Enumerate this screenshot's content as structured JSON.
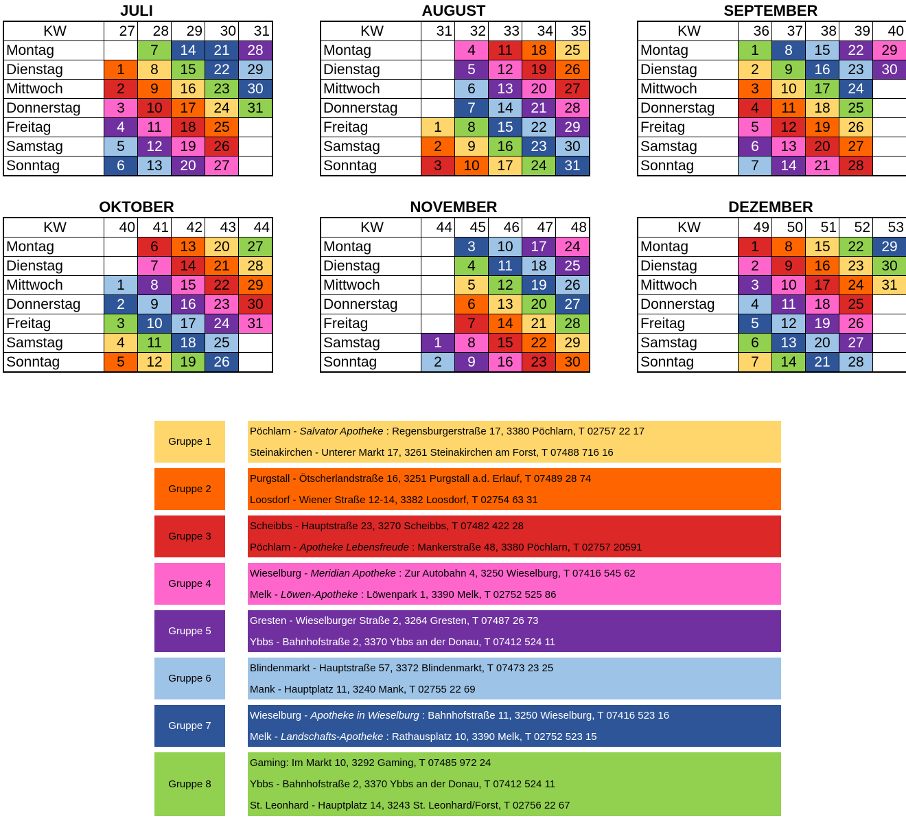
{
  "day_names": [
    "Montag",
    "Dienstag",
    "Mittwoch",
    "Donnerstag",
    "Freitag",
    "Samstag",
    "Sonntag"
  ],
  "kw_label": "KW",
  "months": [
    {
      "name": "JULI",
      "kw": [
        "27",
        "28",
        "29",
        "30",
        "31"
      ],
      "days": [
        [
          [
            "",
            0
          ],
          [
            "7",
            8
          ],
          [
            "14",
            7
          ],
          [
            "21",
            7
          ],
          [
            "28",
            5
          ]
        ],
        [
          [
            "1",
            2
          ],
          [
            "8",
            1
          ],
          [
            "15",
            8
          ],
          [
            "22",
            7
          ],
          [
            "29",
            6
          ]
        ],
        [
          [
            "2",
            3
          ],
          [
            "9",
            2
          ],
          [
            "16",
            1
          ],
          [
            "23",
            8
          ],
          [
            "30",
            7
          ]
        ],
        [
          [
            "3",
            4
          ],
          [
            "10",
            3
          ],
          [
            "17",
            2
          ],
          [
            "24",
            1
          ],
          [
            "31",
            8
          ]
        ],
        [
          [
            "4",
            5
          ],
          [
            "11",
            4
          ],
          [
            "18",
            3
          ],
          [
            "25",
            2
          ],
          [
            "",
            0
          ]
        ],
        [
          [
            "5",
            6
          ],
          [
            "12",
            5
          ],
          [
            "19",
            4
          ],
          [
            "26",
            3
          ],
          [
            "",
            0
          ]
        ],
        [
          [
            "6",
            7
          ],
          [
            "13",
            6
          ],
          [
            "20",
            5
          ],
          [
            "27",
            4
          ],
          [
            "",
            0
          ]
        ]
      ]
    },
    {
      "name": "AUGUST",
      "kw": [
        "31",
        "32",
        "33",
        "34",
        "35"
      ],
      "days": [
        [
          [
            "",
            0
          ],
          [
            "4",
            4
          ],
          [
            "11",
            3
          ],
          [
            "18",
            2
          ],
          [
            "25",
            1
          ]
        ],
        [
          [
            "",
            0
          ],
          [
            "5",
            5
          ],
          [
            "12",
            4
          ],
          [
            "19",
            3
          ],
          [
            "26",
            2
          ]
        ],
        [
          [
            "",
            0
          ],
          [
            "6",
            6
          ],
          [
            "13",
            5
          ],
          [
            "20",
            4
          ],
          [
            "27",
            3
          ]
        ],
        [
          [
            "",
            0
          ],
          [
            "7",
            7
          ],
          [
            "14",
            6
          ],
          [
            "21",
            5
          ],
          [
            "28",
            4
          ]
        ],
        [
          [
            "1",
            1
          ],
          [
            "8",
            8
          ],
          [
            "15",
            7
          ],
          [
            "22",
            6
          ],
          [
            "29",
            5
          ]
        ],
        [
          [
            "2",
            2
          ],
          [
            "9",
            1
          ],
          [
            "16",
            8
          ],
          [
            "23",
            7
          ],
          [
            "30",
            6
          ]
        ],
        [
          [
            "3",
            3
          ],
          [
            "10",
            2
          ],
          [
            "17",
            1
          ],
          [
            "24",
            8
          ],
          [
            "31",
            7
          ]
        ]
      ]
    },
    {
      "name": "SEPTEMBER",
      "kw": [
        "36",
        "37",
        "38",
        "39",
        "40"
      ],
      "days": [
        [
          [
            "1",
            8
          ],
          [
            "8",
            7
          ],
          [
            "15",
            6
          ],
          [
            "22",
            5
          ],
          [
            "29",
            4
          ]
        ],
        [
          [
            "2",
            1
          ],
          [
            "9",
            8
          ],
          [
            "16",
            7
          ],
          [
            "23",
            6
          ],
          [
            "30",
            5
          ]
        ],
        [
          [
            "3",
            2
          ],
          [
            "10",
            1
          ],
          [
            "17",
            8
          ],
          [
            "24",
            7
          ],
          [
            "",
            0
          ]
        ],
        [
          [
            "4",
            3
          ],
          [
            "11",
            2
          ],
          [
            "18",
            1
          ],
          [
            "25",
            8
          ],
          [
            "",
            0
          ]
        ],
        [
          [
            "5",
            4
          ],
          [
            "12",
            3
          ],
          [
            "19",
            2
          ],
          [
            "26",
            1
          ],
          [
            "",
            0
          ]
        ],
        [
          [
            "6",
            5
          ],
          [
            "13",
            4
          ],
          [
            "20",
            3
          ],
          [
            "27",
            2
          ],
          [
            "",
            0
          ]
        ],
        [
          [
            "7",
            6
          ],
          [
            "14",
            5
          ],
          [
            "21",
            4
          ],
          [
            "28",
            3
          ],
          [
            "",
            0
          ]
        ]
      ]
    },
    {
      "name": "OKTOBER",
      "kw": [
        "40",
        "41",
        "42",
        "43",
        "44"
      ],
      "days": [
        [
          [
            "",
            0
          ],
          [
            "6",
            3
          ],
          [
            "13",
            2
          ],
          [
            "20",
            1
          ],
          [
            "27",
            8
          ]
        ],
        [
          [
            "",
            0
          ],
          [
            "7",
            4
          ],
          [
            "14",
            3
          ],
          [
            "21",
            2
          ],
          [
            "28",
            1
          ]
        ],
        [
          [
            "1",
            6
          ],
          [
            "8",
            5
          ],
          [
            "15",
            4
          ],
          [
            "22",
            3
          ],
          [
            "29",
            2
          ]
        ],
        [
          [
            "2",
            7
          ],
          [
            "9",
            6
          ],
          [
            "16",
            5
          ],
          [
            "23",
            4
          ],
          [
            "30",
            3
          ]
        ],
        [
          [
            "3",
            8
          ],
          [
            "10",
            7
          ],
          [
            "17",
            6
          ],
          [
            "24",
            5
          ],
          [
            "31",
            4
          ]
        ],
        [
          [
            "4",
            1
          ],
          [
            "11",
            8
          ],
          [
            "18",
            7
          ],
          [
            "25",
            6
          ],
          [
            "",
            0
          ]
        ],
        [
          [
            "5",
            2
          ],
          [
            "12",
            1
          ],
          [
            "19",
            8
          ],
          [
            "26",
            7
          ],
          [
            "",
            0
          ]
        ]
      ]
    },
    {
      "name": "NOVEMBER",
      "kw": [
        "44",
        "45",
        "46",
        "47",
        "48"
      ],
      "days": [
        [
          [
            "",
            0
          ],
          [
            "3",
            7
          ],
          [
            "10",
            6
          ],
          [
            "17",
            5
          ],
          [
            "24",
            4
          ]
        ],
        [
          [
            "",
            0
          ],
          [
            "4",
            8
          ],
          [
            "11",
            7
          ],
          [
            "18",
            6
          ],
          [
            "25",
            5
          ]
        ],
        [
          [
            "",
            0
          ],
          [
            "5",
            1
          ],
          [
            "12",
            8
          ],
          [
            "19",
            7
          ],
          [
            "26",
            6
          ]
        ],
        [
          [
            "",
            0
          ],
          [
            "6",
            2
          ],
          [
            "13",
            1
          ],
          [
            "20",
            8
          ],
          [
            "27",
            7
          ]
        ],
        [
          [
            "",
            0
          ],
          [
            "7",
            3
          ],
          [
            "14",
            2
          ],
          [
            "21",
            1
          ],
          [
            "28",
            8
          ]
        ],
        [
          [
            "1",
            5
          ],
          [
            "8",
            4
          ],
          [
            "15",
            3
          ],
          [
            "22",
            2
          ],
          [
            "29",
            1
          ]
        ],
        [
          [
            "2",
            6
          ],
          [
            "9",
            5
          ],
          [
            "16",
            4
          ],
          [
            "23",
            3
          ],
          [
            "30",
            2
          ]
        ]
      ]
    },
    {
      "name": "DEZEMBER",
      "kw": [
        "49",
        "50",
        "51",
        "52",
        "53"
      ],
      "days": [
        [
          [
            "1",
            3
          ],
          [
            "8",
            2
          ],
          [
            "15",
            1
          ],
          [
            "22",
            8
          ],
          [
            "29",
            7
          ]
        ],
        [
          [
            "2",
            4
          ],
          [
            "9",
            3
          ],
          [
            "16",
            2
          ],
          [
            "23",
            1
          ],
          [
            "30",
            8
          ]
        ],
        [
          [
            "3",
            5
          ],
          [
            "10",
            4
          ],
          [
            "17",
            3
          ],
          [
            "24",
            2
          ],
          [
            "31",
            1
          ]
        ],
        [
          [
            "4",
            6
          ],
          [
            "11",
            5
          ],
          [
            "18",
            4
          ],
          [
            "25",
            3
          ],
          [
            "",
            0
          ]
        ],
        [
          [
            "5",
            7
          ],
          [
            "12",
            6
          ],
          [
            "19",
            5
          ],
          [
            "26",
            4
          ],
          [
            "",
            0
          ]
        ],
        [
          [
            "6",
            8
          ],
          [
            "13",
            7
          ],
          [
            "20",
            6
          ],
          [
            "27",
            5
          ],
          [
            "",
            0
          ]
        ],
        [
          [
            "7",
            1
          ],
          [
            "14",
            8
          ],
          [
            "21",
            7
          ],
          [
            "28",
            6
          ],
          [
            "",
            0
          ]
        ]
      ]
    }
  ],
  "groups": [
    {
      "label": "Gruppe 1",
      "color": "#fed66b",
      "entries": [
        {
          "place": "Pöchlarn",
          "name": "Salvator Apotheke",
          "address": "Regensburgerstraße 17, 3380 Pöchlarn, T 02757 22 17"
        },
        {
          "place": "Steinakirchen",
          "name": "",
          "address": "Unterer Markt 17, 3261 Steinakirchen am Forst, T 07488 716 16"
        }
      ]
    },
    {
      "label": "Gruppe 2",
      "color": "#fe6500",
      "entries": [
        {
          "place": "Purgstall",
          "name": "",
          "address": "Ötscherlandstraße 16, 3251 Purgstall a.d. Erlauf, T 07489 28 74"
        },
        {
          "place": "Loosdorf",
          "name": "",
          "address": "Wiener Straße 12-14, 3382 Loosdorf, T 02754 63 31"
        }
      ]
    },
    {
      "label": "Gruppe 3",
      "color": "#dc2827",
      "entries": [
        {
          "place": "Scheibbs",
          "name": "",
          "address": "Hauptstraße 23, 3270 Scheibbs, T 07482 422 28"
        },
        {
          "place": "Pöchlarn",
          "name": "Apotheke Lebensfreude",
          "address": "Mankerstraße 48, 3380 Pöchlarn, T 02757 20591"
        }
      ]
    },
    {
      "label": "Gruppe 4",
      "color": "#fe66cc",
      "entries": [
        {
          "place": "Wieselburg",
          "name": "Meridian Apotheke",
          "address": "Zur Autobahn 4, 3250 Wieselburg, T 07416 545 62"
        },
        {
          "place": "Melk",
          "name": "Löwen-Apotheke",
          "address": "Löwenpark 1, 3390 Melk, T 02752 525 86"
        }
      ]
    },
    {
      "label": "Gruppe 5",
      "color": "#7030a0",
      "entries": [
        {
          "place": "Gresten",
          "name": "",
          "address": "Wieselburger Straße 2, 3264 Gresten, T 07487 26 73"
        },
        {
          "place": "Ybbs",
          "name": "",
          "address": "Bahnhofstraße 2, 3370 Ybbs an der Donau, T 07412 524 11"
        }
      ]
    },
    {
      "label": "Gruppe 6",
      "color": "#9dc3e6",
      "entries": [
        {
          "place": "Blindenmarkt",
          "name": "",
          "address": "Hauptstraße 57, 3372 Blindenmarkt, T 07473 23 25"
        },
        {
          "place": "Mank",
          "name": "",
          "address": "Hauptplatz 11, 3240 Mank, T 02755 22 69"
        }
      ]
    },
    {
      "label": "Gruppe 7",
      "color": "#2e5597",
      "entries": [
        {
          "place": "Wieselburg",
          "name": "Apotheke in Wieselburg",
          "address": "Bahnhofstraße 11, 3250 Wieselburg, T 07416 523 16"
        },
        {
          "place": "Melk",
          "name": "Landschafts-Apotheke",
          "address": "Rathausplatz 10, 3390 Melk, T 02752 523 15"
        }
      ]
    },
    {
      "label": "Gruppe 8",
      "color": "#92d050",
      "entries": [
        {
          "place": "Gaming",
          "name": "",
          "address": "Im Markt 10, 3292 Gaming, T 07485 972 24",
          "sep": ": "
        },
        {
          "place": "Ybbs",
          "name": "",
          "address": "Bahnhofstraße 2, 3370 Ybbs an der Donau, T 07412 524 11"
        },
        {
          "place": "St. Leonhard",
          "name": "",
          "address": "Hauptplatz 14, 3243 St. Leonhard/Forst, T 02756 22 67"
        }
      ]
    }
  ]
}
